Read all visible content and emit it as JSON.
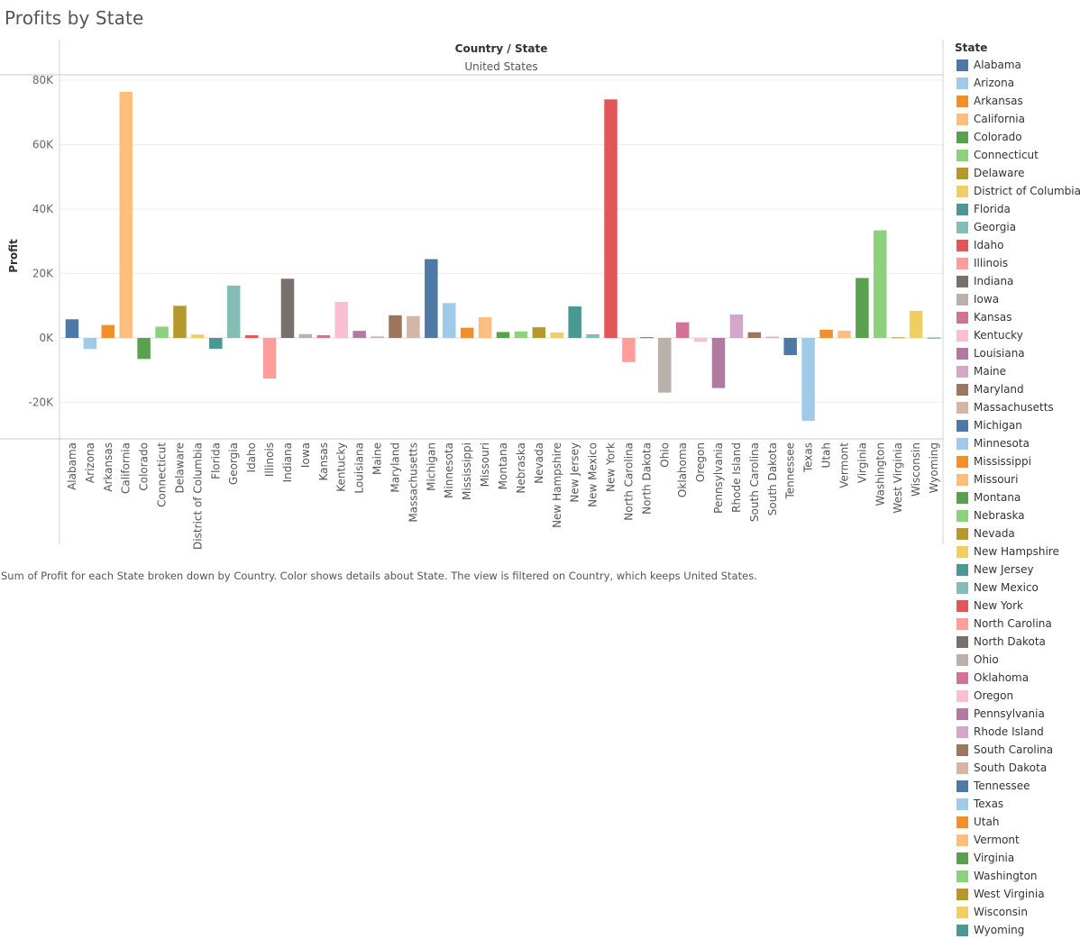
{
  "title": "Profits by State",
  "header": {
    "top": "Country / State",
    "sub": "United States"
  },
  "caption": "Sum of Profit for each State broken down by Country.  Color shows details about State. The view is filtered on Country, which keeps United States.",
  "legend_title": "State",
  "chart_data": {
    "type": "bar",
    "title": "Profits by State",
    "ylabel": "Profit",
    "xlabel": "",
    "ylim": [
      -31000,
      82000
    ],
    "yticks": [
      80000,
      60000,
      40000,
      20000,
      0,
      -20000
    ],
    "ytick_labels": [
      "80K",
      "60K",
      "40K",
      "20K",
      "0K",
      "-20K"
    ],
    "grid": true,
    "legend_placement": "right",
    "categories": [
      "Alabama",
      "Arizona",
      "Arkansas",
      "California",
      "Colorado",
      "Connecticut",
      "Delaware",
      "District of Columbia",
      "Florida",
      "Georgia",
      "Idaho",
      "Illinois",
      "Indiana",
      "Iowa",
      "Kansas",
      "Kentucky",
      "Louisiana",
      "Maine",
      "Maryland",
      "Massachusetts",
      "Michigan",
      "Minnesota",
      "Mississippi",
      "Missouri",
      "Montana",
      "Nebraska",
      "Nevada",
      "New Hampshire",
      "New Jersey",
      "New Mexico",
      "New York",
      "North Carolina",
      "North Dakota",
      "Ohio",
      "Oklahoma",
      "Oregon",
      "Pennsylvania",
      "Rhode Island",
      "South Carolina",
      "South Dakota",
      "Tennessee",
      "Texas",
      "Utah",
      "Vermont",
      "Virginia",
      "Washington",
      "West Virginia",
      "Wisconsin",
      "Wyoming"
    ],
    "values": [
      5787,
      -3428,
      4009,
      76381,
      -6528,
      3511,
      9977,
      1060,
      -3400,
      16250,
      827,
      -12608,
      18383,
      1184,
      836,
      11200,
      2196,
      455,
      7031,
      6786,
      24463,
      10823,
      3173,
      6436,
      1834,
      2037,
      3317,
      1707,
      9773,
      1157,
      74039,
      -7491,
      230,
      -16971,
      4854,
      -1191,
      -15560,
      7286,
      1770,
      395,
      -5342,
      -25729,
      2547,
      2245,
      18598,
      33403,
      186,
      8402,
      100
    ],
    "colors": [
      "#4e79a7",
      "#a0cbe8",
      "#f28e2b",
      "#ffbe7d",
      "#59a14f",
      "#8cd17d",
      "#b6992d",
      "#f1ce63",
      "#499894",
      "#86bcb6",
      "#e15759",
      "#ff9d9a",
      "#79706e",
      "#bab0ac",
      "#d37295",
      "#fabfd2",
      "#b07aa1",
      "#d4a6c8",
      "#9d7660",
      "#d7b5a6",
      "#4e79a7",
      "#a0cbe8",
      "#f28e2b",
      "#ffbe7d",
      "#59a14f",
      "#8cd17d",
      "#b6992d",
      "#f1ce63",
      "#499894",
      "#86bcb6",
      "#e15759",
      "#ff9d9a",
      "#79706e",
      "#bab0ac",
      "#d37295",
      "#fabfd2",
      "#b07aa1",
      "#d4a6c8",
      "#9d7660",
      "#d7b5a6",
      "#4e79a7",
      "#a0cbe8",
      "#f28e2b",
      "#ffbe7d",
      "#59a14f",
      "#8cd17d",
      "#b6992d",
      "#f1ce63",
      "#499894"
    ]
  }
}
